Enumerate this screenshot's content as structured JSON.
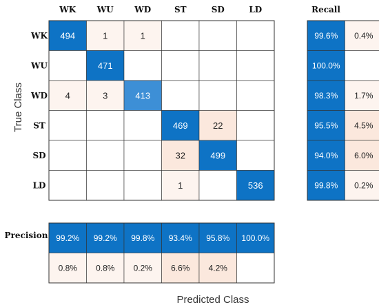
{
  "chart_data": {
    "type": "heatmap",
    "xlabel": "Predicted Class",
    "ylabel": "True Class",
    "classes": [
      "WK",
      "WU",
      "WD",
      "ST",
      "SD",
      "LD"
    ],
    "matrix": [
      [
        494,
        1,
        1,
        null,
        null,
        null
      ],
      [
        null,
        471,
        null,
        null,
        null,
        null
      ],
      [
        4,
        3,
        413,
        null,
        null,
        null
      ],
      [
        null,
        null,
        null,
        469,
        22,
        null
      ],
      [
        null,
        null,
        null,
        32,
        499,
        null
      ],
      [
        null,
        null,
        null,
        1,
        null,
        536
      ]
    ],
    "recall": {
      "title": "Recall",
      "correct": [
        "99.6%",
        "100.0%",
        "98.3%",
        "95.5%",
        "94.0%",
        "99.8%"
      ],
      "incorrect": [
        "0.4%",
        "",
        "1.7%",
        "4.5%",
        "6.0%",
        "0.2%"
      ]
    },
    "precision": {
      "title": "Precision",
      "correct": [
        "99.2%",
        "99.2%",
        "99.8%",
        "93.4%",
        "95.8%",
        "100.0%"
      ],
      "incorrect": [
        "0.8%",
        "0.8%",
        "0.2%",
        "6.6%",
        "4.2%",
        ""
      ]
    },
    "colors": {
      "diag_high": "#0e73c5",
      "diag_mid": "#3d8fd6",
      "off_light": "#fdf4ef",
      "off_mid": "#fbe8dd",
      "grid": "#333333",
      "text_dark": "#222222",
      "text_light": "#ffffff"
    }
  }
}
